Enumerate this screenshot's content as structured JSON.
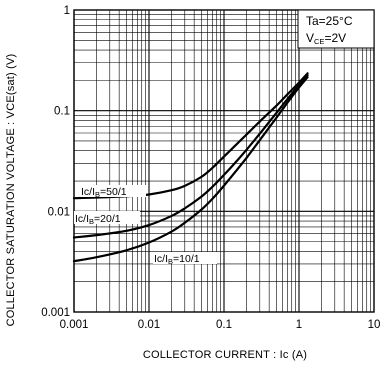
{
  "chart_data": {
    "type": "line",
    "title": "",
    "xlabel": "COLLECTOR  CURRENT : Ic (A)",
    "ylabel": "COLLECTOR  SATURATION  VOLTAGE : VCE(sat) (V)",
    "x_scale": "log",
    "y_scale": "log",
    "xlim": [
      0.001,
      10
    ],
    "ylim": [
      0.001,
      1
    ],
    "grid": true,
    "x_ticks": [
      "0.001",
      "0.01",
      "0.1",
      "1",
      "10"
    ],
    "y_ticks": [
      "0.001",
      "0.01",
      "0.1",
      "1"
    ],
    "conditions": {
      "line1": "Ta=25°C",
      "line2_main": "V",
      "line2_sub": "CE",
      "line2_rest": "=2V"
    },
    "series": [
      {
        "name": "Ic/IB=50/1",
        "label_main": "Ic/I",
        "label_sub": "B",
        "label_rest": "=50/1",
        "x": [
          0.001,
          0.002,
          0.005,
          0.01,
          0.02,
          0.03,
          0.05,
          0.07,
          0.1,
          0.15,
          0.2,
          0.3,
          0.5,
          0.7,
          1.0,
          1.3
        ],
        "y": [
          0.0135,
          0.0137,
          0.0141,
          0.0147,
          0.0162,
          0.0179,
          0.022,
          0.027,
          0.035,
          0.047,
          0.058,
          0.078,
          0.112,
          0.145,
          0.19,
          0.235
        ]
      },
      {
        "name": "Ic/IB=20/1",
        "label_main": "Ic/I",
        "label_sub": "B",
        "label_rest": "=20/1",
        "x": [
          0.001,
          0.002,
          0.005,
          0.01,
          0.02,
          0.03,
          0.05,
          0.07,
          0.1,
          0.15,
          0.2,
          0.3,
          0.5,
          0.7,
          1.0,
          1.3
        ],
        "y": [
          0.0055,
          0.0058,
          0.0064,
          0.0073,
          0.009,
          0.0107,
          0.014,
          0.0175,
          0.023,
          0.032,
          0.041,
          0.059,
          0.095,
          0.13,
          0.18,
          0.225
        ]
      },
      {
        "name": "Ic/IB=10/1",
        "label_main": "Ic/I",
        "label_sub": "B",
        "label_rest": "=10/1",
        "x": [
          0.001,
          0.002,
          0.005,
          0.01,
          0.02,
          0.03,
          0.05,
          0.07,
          0.1,
          0.15,
          0.2,
          0.3,
          0.5,
          0.7,
          1.0,
          1.3
        ],
        "y": [
          0.0032,
          0.0035,
          0.0041,
          0.0049,
          0.0063,
          0.0077,
          0.0104,
          0.0133,
          0.018,
          0.026,
          0.034,
          0.051,
          0.085,
          0.12,
          0.17,
          0.215
        ]
      }
    ]
  }
}
